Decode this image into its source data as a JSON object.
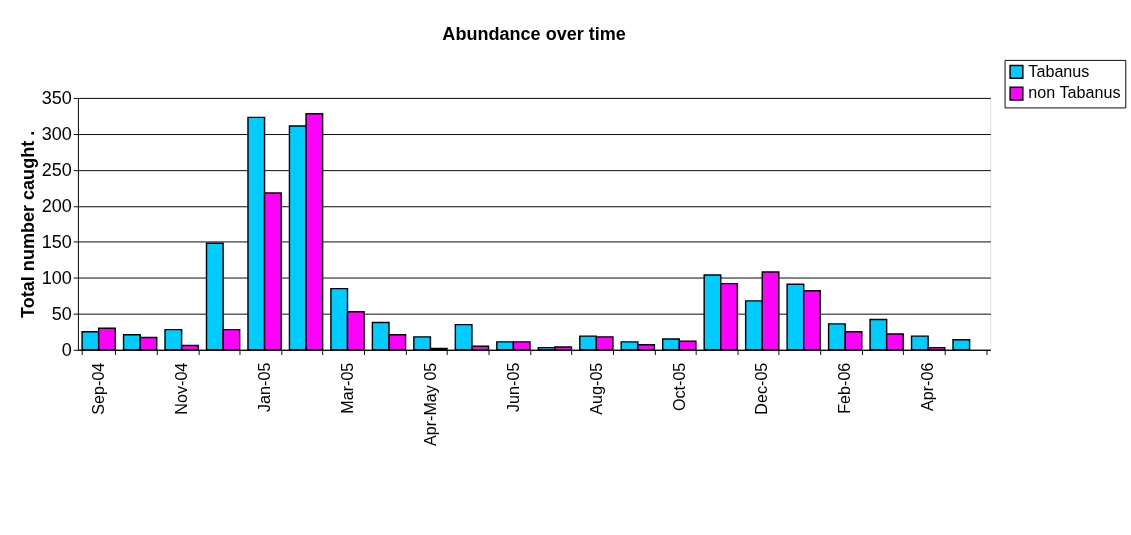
{
  "chart_data": {
    "type": "bar",
    "title": "Abundance over time",
    "ylabel": "Total number caught  .",
    "categories": [
      "Sep-04",
      null,
      "Nov-04",
      null,
      "Jan-05",
      null,
      "Mar-05",
      null,
      "Apr-May 05",
      null,
      "Jun-05",
      null,
      "Aug-05",
      null,
      "Oct-05",
      null,
      "Dec-05",
      null,
      "Feb-06",
      null,
      "Apr-06",
      null
    ],
    "series": [
      {
        "name": "Tabanus",
        "color": "#00ccff",
        "values": [
          25,
          21,
          28,
          148,
          323,
          311,
          85,
          38,
          18,
          35,
          11,
          3,
          19,
          11,
          15,
          104,
          68,
          91,
          36,
          42,
          19,
          14
        ]
      },
      {
        "name": "non Tabanus",
        "color": "#ff00ff",
        "values": [
          30,
          17,
          6,
          28,
          218,
          328,
          53,
          21,
          2,
          5,
          11,
          4,
          18,
          7,
          12,
          92,
          108,
          82,
          25,
          22,
          3,
          null
        ]
      }
    ],
    "ylim": [
      0,
      350
    ],
    "yticks": [
      0,
      50,
      100,
      150,
      200,
      250,
      300,
      350
    ],
    "grid": "y",
    "legend": "top right"
  }
}
